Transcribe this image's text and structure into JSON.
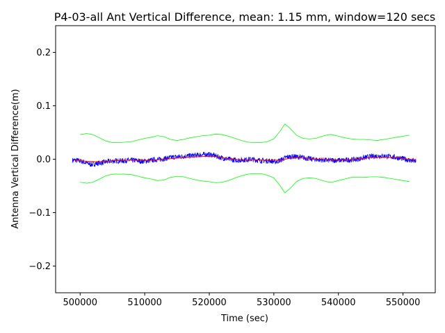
{
  "chart_data": {
    "type": "line",
    "title": "P4-03-all Ant Vertical Difference, mean: 1.15 mm, window=120 secs",
    "xlabel": "Time (sec)",
    "ylabel": "Antenna Vertical Difference(m)",
    "xlim": [
      496200,
      555000
    ],
    "ylim": [
      -0.25,
      0.25
    ],
    "xticks": [
      500000,
      510000,
      520000,
      530000,
      540000,
      550000
    ],
    "xtick_labels": [
      "500000",
      "510000",
      "520000",
      "530000",
      "540000",
      "550000"
    ],
    "yticks": [
      -0.2,
      -0.1,
      0.0,
      0.1,
      0.2
    ],
    "ytick_labels": [
      "−0.2",
      "−0.1",
      "0.0",
      "0.1",
      "0.2"
    ],
    "grid": false,
    "series": [
      {
        "role": "raw-difference",
        "color": "#0000ff",
        "x": [
          498800,
          499500,
          500200,
          501000,
          501700,
          502500,
          503500,
          504500,
          505500,
          506500,
          507500,
          508500,
          509500,
          510500,
          511500,
          512500,
          513500,
          514500,
          515500,
          516500,
          517500,
          518500,
          519500,
          520500,
          521500,
          522500,
          523500,
          524500,
          525500,
          526500,
          527500,
          528500,
          529500,
          530200,
          531000,
          532000,
          533000,
          534000,
          535000,
          536000,
          537000,
          538000,
          539000,
          540000,
          541000,
          542000,
          543000,
          544000,
          545000,
          546000,
          547000,
          548000,
          549000,
          550000,
          551000,
          552000
        ],
        "y": [
          -0.002,
          -0.002,
          -0.004,
          -0.007,
          -0.01,
          -0.008,
          -0.006,
          -0.004,
          -0.003,
          -0.003,
          -0.002,
          -0.002,
          -0.004,
          -0.003,
          -0.001,
          0.0,
          0.002,
          0.004,
          0.005,
          0.006,
          0.007,
          0.008,
          0.009,
          0.008,
          0.004,
          0.001,
          -0.001,
          -0.002,
          -0.001,
          0.0,
          -0.002,
          -0.003,
          -0.003,
          -0.005,
          -0.002,
          0.004,
          0.005,
          0.004,
          0.002,
          0.0,
          -0.001,
          -0.002,
          -0.002,
          -0.002,
          -0.002,
          -0.001,
          0.0,
          0.003,
          0.005,
          0.006,
          0.006,
          0.005,
          0.003,
          0.001,
          -0.002,
          -0.004
        ],
        "noise_amplitude": 0.005
      },
      {
        "role": "running-mean",
        "color": "#ff0000",
        "x": [
          499000,
          501000,
          503000,
          505000,
          507000,
          509000,
          511000,
          513000,
          515000,
          517000,
          519000,
          521000,
          523000,
          525000,
          527000,
          529000,
          531000,
          533000,
          535000,
          537000,
          539000,
          541000,
          543000,
          545000,
          547000,
          549000,
          551000,
          552000
        ],
        "y": [
          -0.001,
          -0.004,
          -0.005,
          -0.003,
          -0.002,
          -0.002,
          -0.002,
          0.0,
          0.002,
          0.004,
          0.005,
          0.005,
          0.001,
          -0.001,
          -0.001,
          -0.002,
          -0.002,
          0.003,
          0.002,
          0.0,
          -0.001,
          -0.001,
          0.0,
          0.003,
          0.004,
          0.003,
          0.0,
          -0.002
        ]
      },
      {
        "role": "upper-bound",
        "color": "#00ff00",
        "x": [
          500000,
          501000,
          502000,
          503000,
          504000,
          505000,
          506000,
          507000,
          508000,
          509000,
          510000,
          511000,
          512000,
          513000,
          514000,
          515000,
          516000,
          517000,
          518000,
          519000,
          520000,
          521000,
          522000,
          523000,
          524000,
          525000,
          526000,
          527000,
          528000,
          529000,
          530000,
          531000,
          531700,
          532500,
          533500,
          534500,
          535500,
          536500,
          537500,
          538500,
          539000,
          540000,
          541000,
          542000,
          543000,
          544000,
          545000,
          546000,
          547000,
          548000,
          549000,
          550000,
          551000
        ],
        "y": [
          0.046,
          0.048,
          0.046,
          0.04,
          0.034,
          0.031,
          0.031,
          0.032,
          0.033,
          0.036,
          0.039,
          0.041,
          0.044,
          0.042,
          0.037,
          0.035,
          0.037,
          0.04,
          0.042,
          0.044,
          0.045,
          0.047,
          0.046,
          0.043,
          0.039,
          0.035,
          0.032,
          0.031,
          0.031,
          0.033,
          0.038,
          0.053,
          0.066,
          0.058,
          0.045,
          0.039,
          0.038,
          0.039,
          0.043,
          0.046,
          0.046,
          0.043,
          0.04,
          0.038,
          0.037,
          0.037,
          0.036,
          0.035,
          0.037,
          0.039,
          0.041,
          0.043,
          0.045
        ]
      },
      {
        "role": "lower-bound",
        "color": "#00ff00",
        "x": [
          500000,
          501000,
          502000,
          503000,
          504000,
          505000,
          506000,
          507000,
          508000,
          509000,
          510000,
          511000,
          512000,
          513000,
          514000,
          515000,
          516000,
          517000,
          518000,
          519000,
          520000,
          521000,
          522000,
          523000,
          524000,
          525000,
          526000,
          527000,
          528000,
          529000,
          530000,
          531000,
          531700,
          532500,
          533500,
          534500,
          535500,
          536500,
          537500,
          538500,
          539000,
          540000,
          541000,
          542000,
          543000,
          544000,
          545000,
          546000,
          547000,
          548000,
          549000,
          550000,
          551000
        ],
        "y": [
          -0.043,
          -0.045,
          -0.043,
          -0.037,
          -0.031,
          -0.028,
          -0.028,
          -0.028,
          -0.029,
          -0.032,
          -0.035,
          -0.037,
          -0.04,
          -0.039,
          -0.034,
          -0.032,
          -0.033,
          -0.036,
          -0.039,
          -0.041,
          -0.042,
          -0.044,
          -0.043,
          -0.04,
          -0.035,
          -0.031,
          -0.028,
          -0.027,
          -0.027,
          -0.03,
          -0.035,
          -0.05,
          -0.063,
          -0.055,
          -0.042,
          -0.036,
          -0.035,
          -0.036,
          -0.04,
          -0.043,
          -0.043,
          -0.04,
          -0.037,
          -0.034,
          -0.034,
          -0.034,
          -0.033,
          -0.033,
          -0.034,
          -0.036,
          -0.038,
          -0.04,
          -0.042
        ]
      }
    ]
  }
}
